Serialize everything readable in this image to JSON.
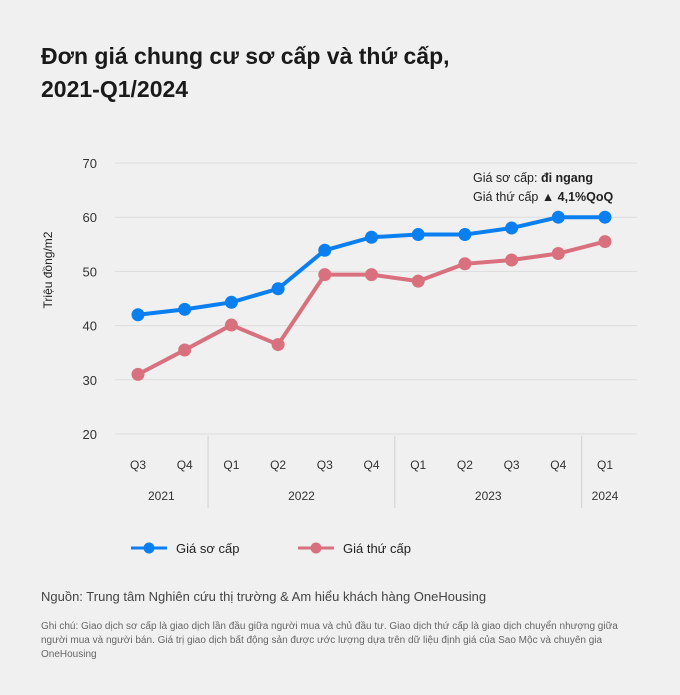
{
  "title_line1": "Đơn giá chung cư sơ cấp và thứ cấp,",
  "title_line2": "2021-Q1/2024",
  "source": "Nguồn: Trung tâm Nghiên cứu thị trường & Am hiểu khách hàng OneHousing",
  "note": "Ghi chú: Giao dịch sơ cấp là giao dịch lần đầu giữa người mua và chủ đầu tư. Giao dịch thứ cấp là giao dịch chuyển nhượng giữa người mua và người bán. Giá trị giao dịch bất động sản được ước lượng dựa trên dữ liệu định giá của Sao Mộc và chuyên gia OneHousing",
  "chart_data": {
    "type": "line",
    "ylabel": "Triệu đồng/m2",
    "ylim": [
      20,
      70
    ],
    "yticks": [
      20,
      30,
      40,
      50,
      60,
      70
    ],
    "grid": true,
    "legend": "bottom",
    "categories": [
      "Q3",
      "Q4",
      "Q1",
      "Q2",
      "Q3",
      "Q4",
      "Q1",
      "Q2",
      "Q3",
      "Q4",
      "Q1"
    ],
    "year_groups": [
      {
        "label": "2021",
        "count": 2
      },
      {
        "label": "2022",
        "count": 4
      },
      {
        "label": "2023",
        "count": 4
      },
      {
        "label": "2024",
        "count": 1
      }
    ],
    "series": [
      {
        "name": "Giá sơ cấp",
        "color": "#0a7ff0",
        "values": [
          42.0,
          43.0,
          44.3,
          46.8,
          53.9,
          56.3,
          56.8,
          56.8,
          58.0,
          60.0,
          60.0
        ]
      },
      {
        "name": "Giá thứ cấp",
        "color": "#d9707e",
        "values": [
          31.0,
          35.5,
          40.1,
          36.5,
          49.4,
          49.4,
          48.2,
          51.4,
          52.1,
          53.3,
          55.5
        ]
      }
    ],
    "annotation": {
      "line1_label": "Giá sơ cấp: ",
      "line1_value": "đi ngang",
      "line2_label": "Giá thứ cấp ",
      "line2_value": "▲ 4,1%QoQ"
    }
  }
}
